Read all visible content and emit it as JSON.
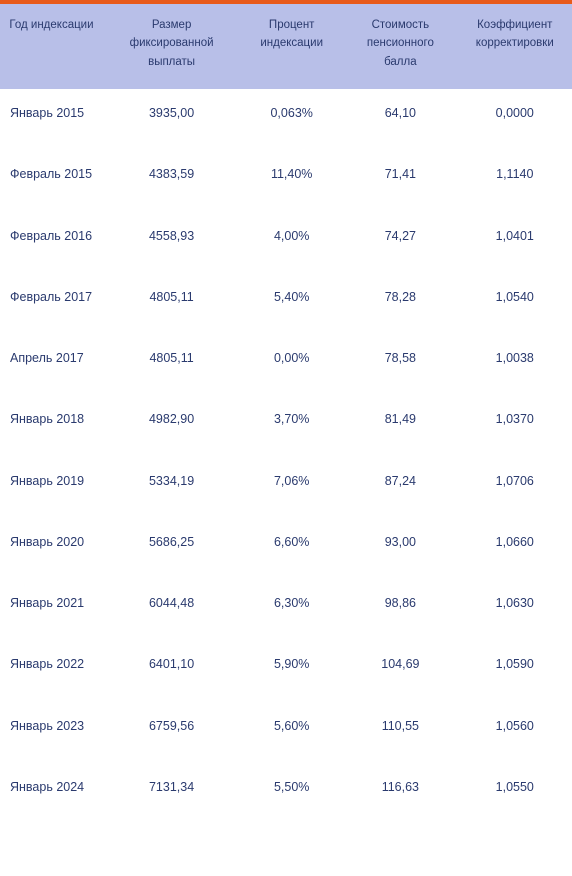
{
  "accent_bar_color": "#e85a1a",
  "header_bg": "#b8bfe8",
  "text_color": "#2a3a6e",
  "columns": [
    "Год индексации",
    "Размер фиксированной выплаты",
    "Процент индексации",
    "Стоимость пенсионного балла",
    "Коэффициент корректировки"
  ],
  "rows": [
    {
      "period": "Январь 2015",
      "fixed": "3935,00",
      "pct": "0,063%",
      "point": "64,10",
      "coef": "0,0000"
    },
    {
      "period": "Февраль 2015",
      "fixed": "4383,59",
      "pct": "11,40%",
      "point": "71,41",
      "coef": "1,1140"
    },
    {
      "period": "Февраль 2016",
      "fixed": "4558,93",
      "pct": "4,00%",
      "point": "74,27",
      "coef": "1,0401"
    },
    {
      "period": "Февраль 2017",
      "fixed": "4805,11",
      "pct": "5,40%",
      "point": "78,28",
      "coef": "1,0540"
    },
    {
      "period": "Апрель 2017",
      "fixed": "4805,11",
      "pct": "0,00%",
      "point": "78,58",
      "coef": "1,0038"
    },
    {
      "period": "Январь 2018",
      "fixed": "4982,90",
      "pct": "3,70%",
      "point": "81,49",
      "coef": "1,0370"
    },
    {
      "period": "Январь 2019",
      "fixed": "5334,19",
      "pct": "7,06%",
      "point": "87,24",
      "coef": "1,0706"
    },
    {
      "period": "Январь 2020",
      "fixed": "5686,25",
      "pct": "6,60%",
      "point": "93,00",
      "coef": "1,0660"
    },
    {
      "period": "Январь 2021",
      "fixed": "6044,48",
      "pct": "6,30%",
      "point": "98,86",
      "coef": "1,0630"
    },
    {
      "period": "Январь 2022",
      "fixed": "6401,10",
      "pct": "5,90%",
      "point": "104,69",
      "coef": "1,0590"
    },
    {
      "period": "Январь 2023",
      "fixed": "6759,56",
      "pct": "5,60%",
      "point": "110,55",
      "coef": "1,0560"
    },
    {
      "period": "Январь 2024",
      "fixed": "7131,34",
      "pct": "5,50%",
      "point": "116,63",
      "coef": "1,0550"
    }
  ]
}
